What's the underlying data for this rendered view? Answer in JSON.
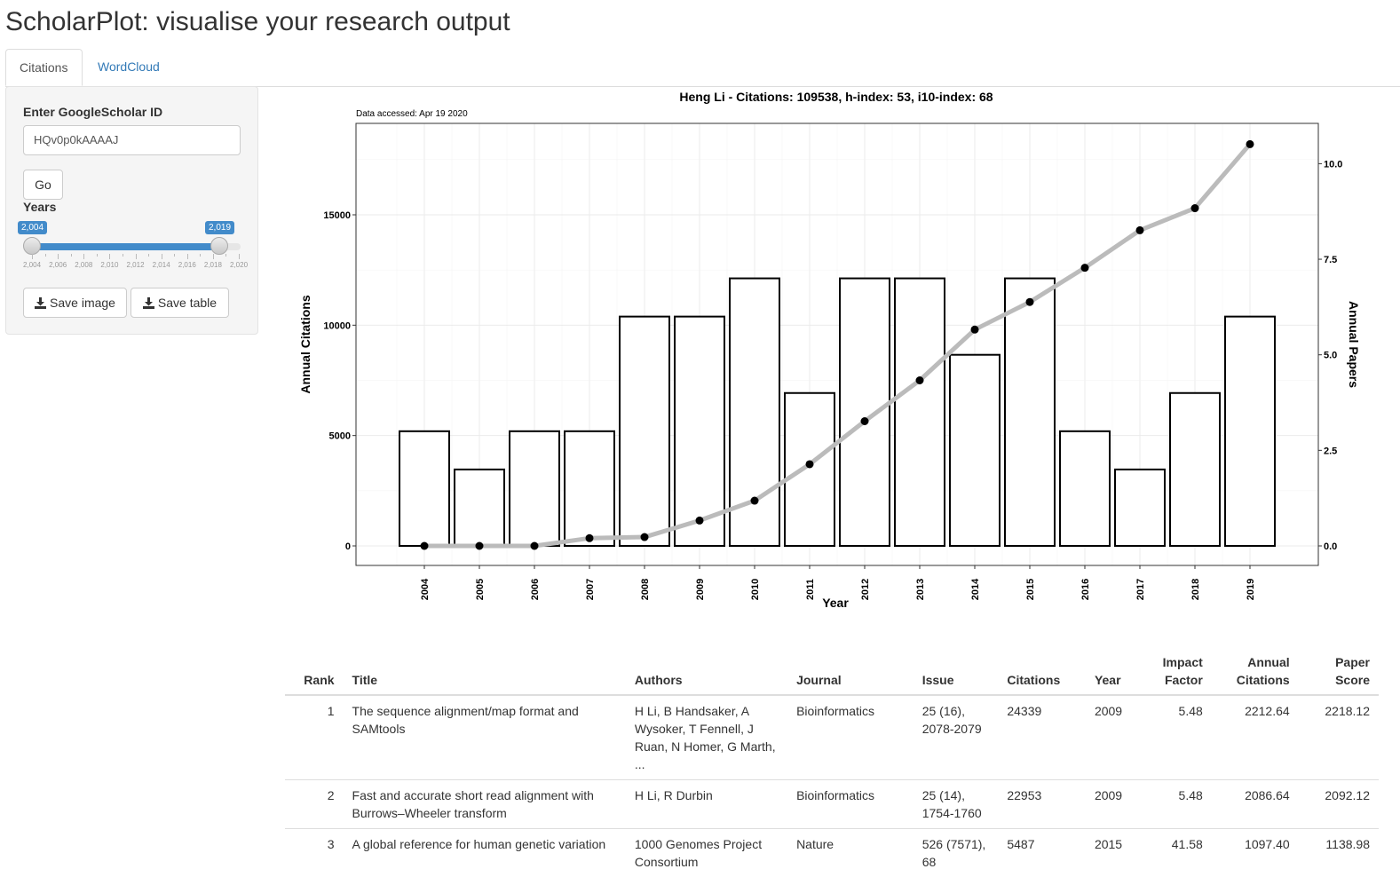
{
  "app": {
    "title": "ScholarPlot: visualise your research output"
  },
  "tabs": [
    {
      "label": "Citations",
      "active": true
    },
    {
      "label": "WordCloud",
      "active": false
    }
  ],
  "sidebar": {
    "id_label": "Enter GoogleScholar ID",
    "id_value": "HQv0p0kAAAAJ",
    "go_label": "Go",
    "years_label": "Years",
    "years_min": 2004,
    "years_max": 2020,
    "years_from": 2004,
    "years_to": 2019,
    "from_display": "2,004",
    "to_display": "2,019",
    "tick_labels": [
      "2,004",
      "2,006",
      "2,008",
      "2,010",
      "2,012",
      "2,014",
      "2,016",
      "2,018",
      "2,020"
    ],
    "save_image_label": "Save image",
    "save_table_label": "Save table",
    "icons": {
      "save_image": "download-icon",
      "save_table": "download-icon"
    }
  },
  "chart_data": {
    "type": "bar",
    "title": "Heng Li - Citations: 109538, h-index: 53, i10-index: 68",
    "subtitle": "Data accessed: Apr 19 2020",
    "xlabel": "Year",
    "ylabel": "Annual Citations",
    "y2label": "Annual Papers",
    "categories": [
      "2004",
      "2005",
      "2006",
      "2007",
      "2008",
      "2009",
      "2010",
      "2011",
      "2012",
      "2013",
      "2014",
      "2015",
      "2016",
      "2017",
      "2018",
      "2019"
    ],
    "yticks": [
      0,
      5000,
      10000,
      15000
    ],
    "y2ticks": [
      "0.0",
      "2.5",
      "5.0",
      "7.5",
      "10.0"
    ],
    "ylim": [
      0,
      18000
    ],
    "y2lim": [
      0,
      10.5
    ],
    "series": [
      {
        "name": "Annual Papers",
        "type": "bar",
        "axis": "right",
        "values": [
          3,
          2,
          3,
          3,
          6,
          6,
          7,
          4,
          7,
          7,
          5,
          7,
          3,
          2,
          4,
          6
        ]
      },
      {
        "name": "Annual Citations",
        "type": "line",
        "axis": "left",
        "values": [
          0,
          0,
          0,
          350,
          400,
          1150,
          2050,
          3700,
          5650,
          7500,
          9800,
          11050,
          12600,
          14300,
          15300,
          18200
        ]
      }
    ],
    "grid": true,
    "legend": "none",
    "colors": {
      "bar_fill": "#ffffff",
      "bar_stroke": "#000000",
      "line": "#bbbbbb",
      "point": "#000000",
      "grid": "#ebebeb"
    }
  },
  "table": {
    "headers": [
      {
        "label": "Rank",
        "align": "right"
      },
      {
        "label": "Title",
        "align": "left"
      },
      {
        "label": "Authors",
        "align": "left"
      },
      {
        "label": "Journal",
        "align": "left"
      },
      {
        "label": "Issue",
        "align": "left"
      },
      {
        "label": "Citations",
        "align": "left"
      },
      {
        "label": "Year",
        "align": "left"
      },
      {
        "label": "Impact Factor",
        "align": "right"
      },
      {
        "label": "Annual Citations",
        "align": "right"
      },
      {
        "label": "Paper Score",
        "align": "right"
      }
    ],
    "rows": [
      [
        "1",
        "The sequence alignment/map format and SAMtools",
        "H Li, B Handsaker, A Wysoker, T Fennell, J Ruan, N Homer, G Marth, ...",
        "Bioinformatics",
        "25 (16), 2078-2079",
        "24339",
        "2009",
        "5.48",
        "2212.64",
        "2218.12"
      ],
      [
        "2",
        "Fast and accurate short read alignment with Burrows–Wheeler transform",
        "H Li, R Durbin",
        "Bioinformatics",
        "25 (14), 1754-1760",
        "22953",
        "2009",
        "5.48",
        "2086.64",
        "2092.12"
      ],
      [
        "3",
        "A global reference for human genetic variation",
        "1000 Genomes Project Consortium",
        "Nature",
        "526 (7571), 68",
        "5487",
        "2015",
        "41.58",
        "1097.40",
        "1138.98"
      ]
    ]
  }
}
